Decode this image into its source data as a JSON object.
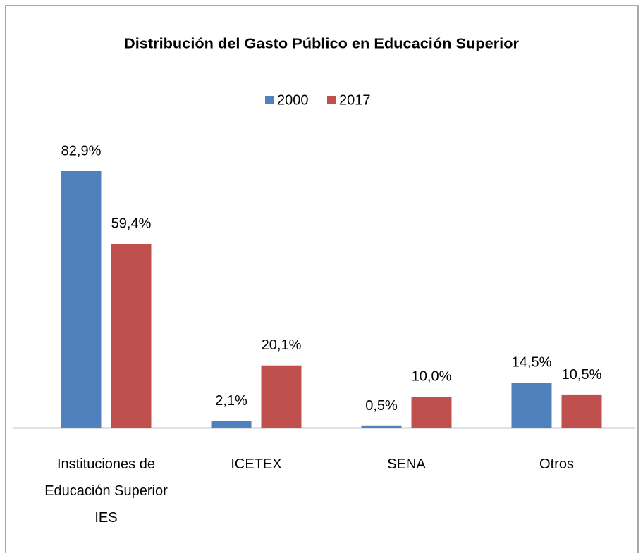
{
  "chart_data": {
    "type": "bar",
    "title": "Distribución del Gasto Público en Educación Superior",
    "categories": [
      "Instituciones de\nEducación Superior\nIES",
      "ICETEX",
      "SENA",
      "Otros"
    ],
    "series": [
      {
        "name": "2000",
        "color": "#4f81bd",
        "values": [
          82.9,
          2.1,
          0.5,
          14.5
        ],
        "value_labels": [
          "82,9%",
          "2,1%",
          "0,5%",
          "14,5%"
        ]
      },
      {
        "name": "2017",
        "color": "#c0504d",
        "values": [
          59.4,
          20.1,
          10.0,
          10.5
        ],
        "value_labels": [
          "59,4%",
          "20,1%",
          "10,0%",
          "10,5%"
        ]
      }
    ],
    "legend": "top"
  }
}
